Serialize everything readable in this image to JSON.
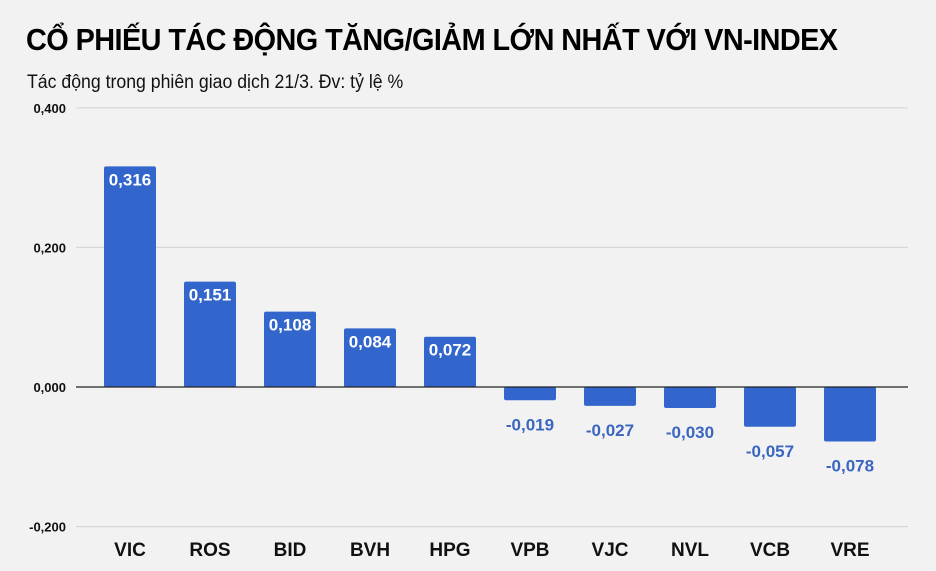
{
  "header": {
    "title": "CỔ PHIẾU TÁC ĐỘNG TĂNG/GIẢM LỚN NHẤT VỚI VN-INDEX",
    "subtitle": "Tác động trong phiên giao dịch 21/3. Đv: tỷ lệ %"
  },
  "colors": {
    "bar": "#3366cc",
    "negative_label": "#3a66c0",
    "positive_label": "#ffffff",
    "grid": "#d6d6d6",
    "zero_line": "#222222",
    "background": "#f2f2f2"
  },
  "chart_data": {
    "type": "bar",
    "title": "CỔ PHIẾU TÁC ĐỘNG TĂNG/GIẢM LỚN NHẤT VỚI VN-INDEX",
    "subtitle": "Tác động trong phiên giao dịch 21/3. Đv: tỷ lệ %",
    "categories": [
      "VIC",
      "ROS",
      "BID",
      "BVH",
      "HPG",
      "VPB",
      "VJC",
      "NVL",
      "VCB",
      "VRE"
    ],
    "values": [
      0.316,
      0.151,
      0.108,
      0.084,
      0.072,
      -0.019,
      -0.027,
      -0.03,
      -0.057,
      -0.078
    ],
    "value_labels": [
      "0,316",
      "0,151",
      "0,108",
      "0,084",
      "0,072",
      "-0,019",
      "-0,027",
      "-0,030",
      "-0,057",
      "-0,078"
    ],
    "xlabel": "",
    "ylabel": "",
    "ylim": [
      -0.2,
      0.4
    ],
    "yticks": [
      0.4,
      0.2,
      0.0,
      -0.2
    ],
    "ytick_labels": [
      "0,400",
      "0,200",
      "0,000",
      "-0,200"
    ],
    "grid": true,
    "legend": "none"
  }
}
